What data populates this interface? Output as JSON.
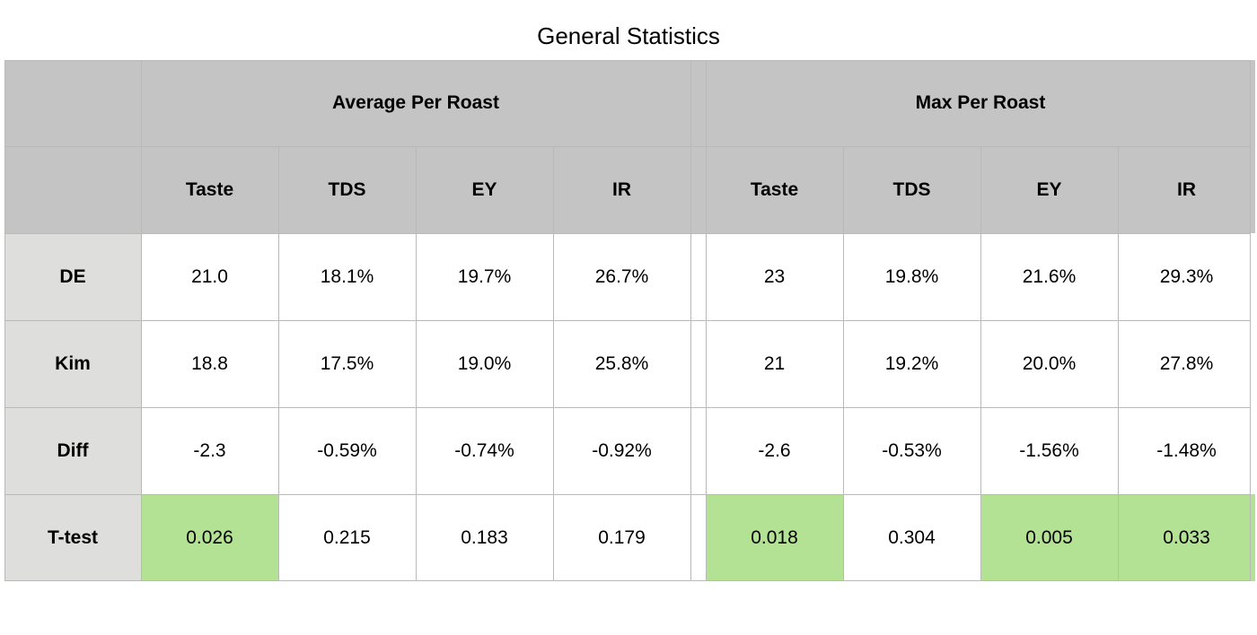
{
  "chart_data": {
    "type": "table",
    "title": "General Statistics",
    "groups": [
      "Average Per Roast",
      "Max Per Roast"
    ],
    "columns": [
      "Taste",
      "TDS",
      "EY",
      "IR"
    ],
    "rows": [
      {
        "label": "DE",
        "avg": [
          "21.0",
          "18.1%",
          "19.7%",
          "26.7%"
        ],
        "max": [
          "23",
          "19.8%",
          "21.6%",
          "29.3%"
        ]
      },
      {
        "label": "Kim",
        "avg": [
          "18.8",
          "17.5%",
          "19.0%",
          "25.8%"
        ],
        "max": [
          "21",
          "19.2%",
          "20.0%",
          "27.8%"
        ]
      },
      {
        "label": "Diff",
        "avg": [
          "-2.3",
          "-0.59%",
          "-0.74%",
          "-0.92%"
        ],
        "max": [
          "-2.6",
          "-0.53%",
          "-1.56%",
          "-1.48%"
        ]
      },
      {
        "label": "T-test",
        "avg": [
          "0.026",
          "0.215",
          "0.183",
          "0.179"
        ],
        "max": [
          "0.018",
          "0.304",
          "0.005",
          "0.033"
        ]
      }
    ],
    "highlight": {
      "color": "#b4e295",
      "cells": [
        [
          3,
          "avg",
          0
        ],
        [
          3,
          "max",
          0
        ],
        [
          3,
          "max",
          2
        ],
        [
          3,
          "max",
          3
        ]
      ]
    },
    "colors": {
      "header": "#c3c4c3",
      "row_header": "#dededd",
      "cell": "#ffffff",
      "grid": "#b9b9b9"
    }
  }
}
